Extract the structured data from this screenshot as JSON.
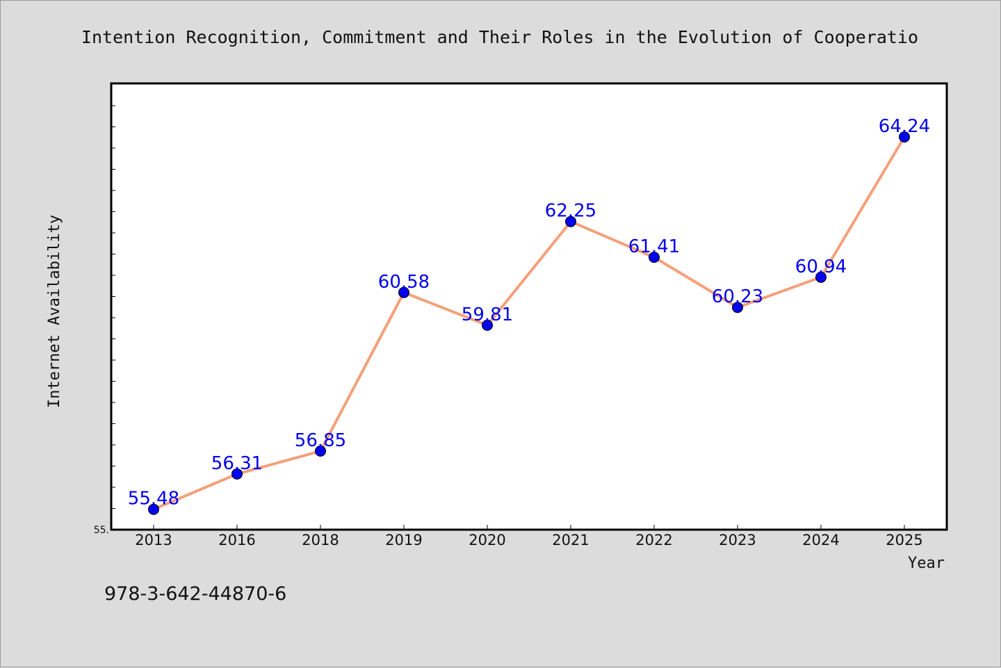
{
  "chart_data": {
    "type": "line",
    "title": "Intention Recognition, Commitment and Their Roles in the Evolution of Cooperatio",
    "xlabel": "Year",
    "ylabel": "Internet Availability",
    "categories": [
      "2013",
      "2016",
      "2018",
      "2019",
      "2020",
      "2021",
      "2022",
      "2023",
      "2024",
      "2025"
    ],
    "series": [
      {
        "values": [
          55.48,
          56.31,
          56.85,
          60.58,
          59.81,
          62.25,
          61.41,
          60.23,
          60.94,
          64.24
        ],
        "data_labels": [
          "55.48",
          "56.31",
          "56.85",
          "60.58",
          "59.81",
          "62.25",
          "61.41",
          "60.23",
          "60.94",
          "64.24"
        ],
        "line_color": "#f4a07a",
        "marker_color": "#0000ee"
      }
    ],
    "ylim": [
      55.0,
      65.5
    ],
    "y_tick_label": "55.",
    "grid": false,
    "legend": "none",
    "plot_background": "#ffffff",
    "figure_background": "#dcdcdc"
  },
  "footer": {
    "text": "978-3-642-44870-6"
  }
}
